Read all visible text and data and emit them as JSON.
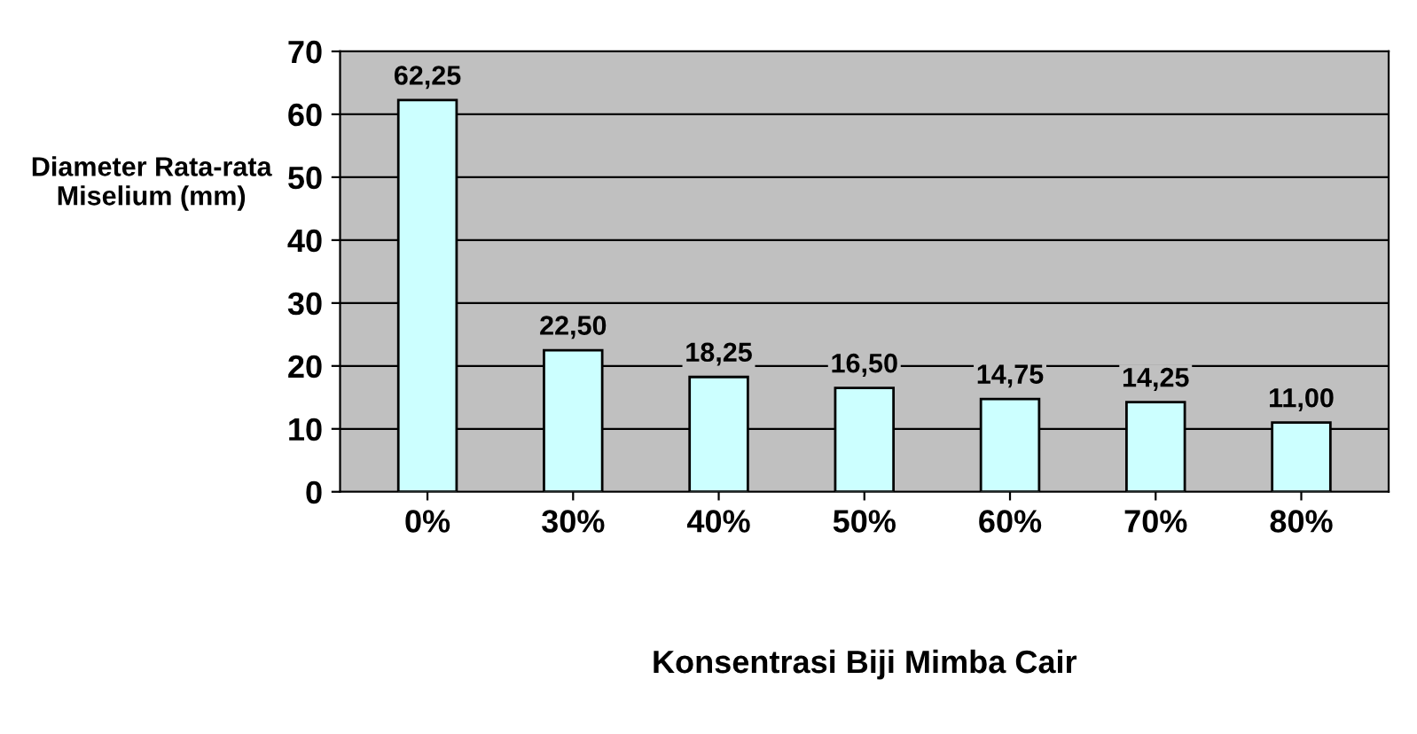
{
  "chart_data": {
    "type": "bar",
    "xlabel": "Konsentrasi Biji Mimba Cair",
    "ylabel": "Diameter Rata-rata Miselium (mm)",
    "categories": [
      "0%",
      "30%",
      "40%",
      "50%",
      "60%",
      "70%",
      "80%"
    ],
    "values": [
      62.25,
      22.5,
      18.25,
      16.5,
      14.75,
      14.25,
      11.0
    ],
    "value_labels": [
      "62,25",
      "22,50",
      "18,25",
      "16,50",
      "14,75",
      "14,25",
      "11,00"
    ],
    "color": "#ccffff",
    "ylim": [
      0,
      70
    ],
    "yticks": [
      0,
      10,
      20,
      30,
      40,
      50,
      60,
      70
    ],
    "grid": "y",
    "legend": false
  }
}
